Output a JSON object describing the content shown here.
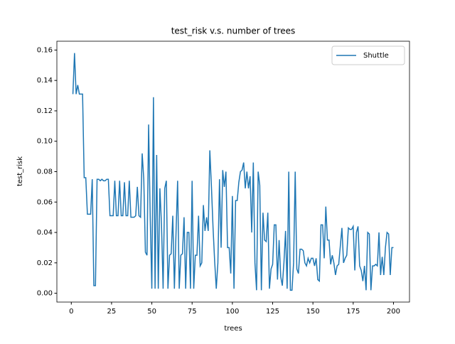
{
  "chart_data": {
    "type": "line",
    "title": "test_risk v.s. number of trees",
    "xlabel": "trees",
    "ylabel": "test_risk",
    "x": [
      1,
      2,
      3,
      4,
      5,
      6,
      7,
      8,
      9,
      10,
      11,
      12,
      13,
      14,
      15,
      16,
      17,
      18,
      19,
      20,
      21,
      22,
      23,
      24,
      25,
      26,
      27,
      28,
      29,
      30,
      31,
      32,
      33,
      34,
      35,
      36,
      37,
      38,
      39,
      40,
      41,
      42,
      43,
      44,
      45,
      46,
      47,
      48,
      49,
      50,
      51,
      52,
      53,
      54,
      55,
      56,
      57,
      58,
      59,
      60,
      61,
      62,
      63,
      64,
      65,
      66,
      67,
      68,
      69,
      70,
      71,
      72,
      73,
      74,
      75,
      76,
      77,
      78,
      79,
      80,
      81,
      82,
      83,
      84,
      85,
      86,
      87,
      88,
      89,
      90,
      91,
      92,
      93,
      94,
      95,
      96,
      97,
      98,
      99,
      100,
      101,
      102,
      103,
      104,
      105,
      106,
      107,
      108,
      109,
      110,
      111,
      112,
      113,
      114,
      115,
      116,
      117,
      118,
      119,
      120,
      121,
      122,
      123,
      124,
      125,
      126,
      127,
      128,
      129,
      130,
      131,
      132,
      133,
      134,
      135,
      136,
      137,
      138,
      139,
      140,
      141,
      142,
      143,
      144,
      145,
      146,
      147,
      148,
      149,
      150,
      151,
      152,
      153,
      154,
      155,
      156,
      157,
      158,
      159,
      160,
      161,
      162,
      163,
      164,
      165,
      166,
      167,
      168,
      169,
      170,
      171,
      172,
      173,
      174,
      175,
      176,
      177,
      178,
      179,
      180,
      181,
      182,
      183,
      184,
      185,
      186,
      187,
      188,
      189,
      190,
      191,
      192,
      193,
      194,
      195,
      196,
      197,
      198,
      199,
      200
    ],
    "series": [
      {
        "name": "Shuttle",
        "color": "#1f77b4",
        "values": [
          0.131,
          0.158,
          0.131,
          0.137,
          0.131,
          0.131,
          0.131,
          0.076,
          0.076,
          0.052,
          0.052,
          0.052,
          0.075,
          0.005,
          0.005,
          0.075,
          0.075,
          0.074,
          0.075,
          0.074,
          0.074,
          0.075,
          0.075,
          0.051,
          0.051,
          0.051,
          0.074,
          0.051,
          0.051,
          0.074,
          0.051,
          0.051,
          0.073,
          0.051,
          0.051,
          0.074,
          0.05,
          0.05,
          0.05,
          0.051,
          0.07,
          0.051,
          0.05,
          0.092,
          0.075,
          0.027,
          0.025,
          0.111,
          0.05,
          0.003,
          0.129,
          0.003,
          0.091,
          0.003,
          0.069,
          0.045,
          0.003,
          0.069,
          0.074,
          0.003,
          0.025,
          0.026,
          0.051,
          0.003,
          0.039,
          0.074,
          0.003,
          0.025,
          0.026,
          0.05,
          0.003,
          0.04,
          0.04,
          0.003,
          0.074,
          0.003,
          0.025,
          0.025,
          0.051,
          0.018,
          0.02,
          0.058,
          0.041,
          0.05,
          0.041,
          0.094,
          0.07,
          0.043,
          0.021,
          0.003,
          0.02,
          0.075,
          0.03,
          0.081,
          0.07,
          0.08,
          0.03,
          0.03,
          0.013,
          0.064,
          0.003,
          0.061,
          0.061,
          0.073,
          0.08,
          0.081,
          0.086,
          0.069,
          0.08,
          0.069,
          0.077,
          0.04,
          0.086,
          0.02,
          0.002,
          0.08,
          0.071,
          0.002,
          0.053,
          0.035,
          0.034,
          0.053,
          0.003,
          0.016,
          0.019,
          0.045,
          0.045,
          0.009,
          0.035,
          0.011,
          0.005,
          0.02,
          0.041,
          0.003,
          0.08,
          0.002,
          0.002,
          0.02,
          0.08,
          0.016,
          0.013,
          0.029,
          0.029,
          0.028,
          0.02,
          0.018,
          0.023,
          0.02,
          0.023,
          0.023,
          0.018,
          0.023,
          0.009,
          0.008,
          0.045,
          0.045,
          0.023,
          0.057,
          0.035,
          0.035,
          0.019,
          0.025,
          0.02,
          0.012,
          0.018,
          0.019,
          0.031,
          0.043,
          0.02,
          0.023,
          0.025,
          0.043,
          0.042,
          0.042,
          0.044,
          0.015,
          0.04,
          0.044,
          0.018,
          0.015,
          0.008,
          0.018,
          0.002,
          0.04,
          0.039,
          0.002,
          0.018,
          0.018,
          0.019,
          0.018,
          0.04,
          0.012,
          0.024,
          0.012,
          0.03,
          0.04,
          0.039,
          0.012,
          0.03,
          0.03
        ]
      }
    ],
    "xlim": [
      -8.95,
      209.95
    ],
    "xticks": [
      0,
      25,
      50,
      75,
      100,
      125,
      150,
      175,
      200
    ],
    "ylim": [
      -0.0058,
      0.1658
    ],
    "yticks": [
      {
        "value": 0,
        "label": "0.00"
      },
      {
        "value": 0.02,
        "label": "0.02"
      },
      {
        "value": 0.04,
        "label": "0.04"
      },
      {
        "value": 0.06,
        "label": "0.06"
      },
      {
        "value": 0.08,
        "label": "0.08"
      },
      {
        "value": 0.1,
        "label": "0.10"
      },
      {
        "value": 0.12,
        "label": "0.12"
      },
      {
        "value": 0.14,
        "label": "0.14"
      },
      {
        "value": 0.16,
        "label": "0.16"
      }
    ],
    "legend": "upper right"
  }
}
